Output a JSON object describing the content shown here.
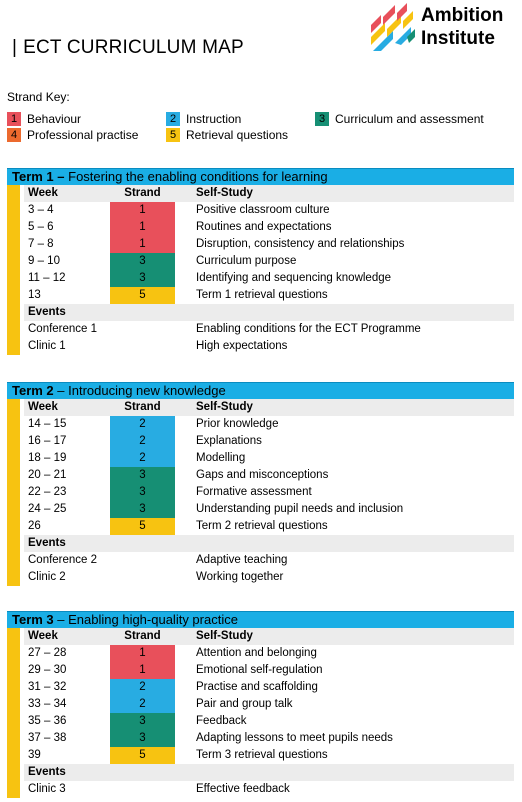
{
  "header": {
    "bar": "|",
    "title": "ECT CURRICULUM MAP",
    "logo_line1": "Ambition",
    "logo_line2": "Institute"
  },
  "colors": {
    "strand1": "#e8505b",
    "strand2": "#28ace2",
    "strand3": "#168f74",
    "strand4": "#ec6a2e",
    "strand5": "#f7c311",
    "term_header": "#1aaee5",
    "sidebar": "#f7c311",
    "row_shade": "#ececec"
  },
  "strand_key": {
    "title": "Strand Key:",
    "items": [
      {
        "num": "1",
        "label": "Behaviour"
      },
      {
        "num": "2",
        "label": "Instruction"
      },
      {
        "num": "3",
        "label": "Curriculum and assessment"
      },
      {
        "num": "4",
        "label": "Professional practise"
      },
      {
        "num": "5",
        "label": "Retrieval questions"
      }
    ]
  },
  "columns": {
    "week": "Week",
    "strand": "Strand",
    "self_study": "Self-Study"
  },
  "events_label": "Events",
  "terms": [
    {
      "name": "Term 1 –",
      "subtitle": " Fostering the enabling conditions for learning",
      "rows": [
        {
          "week": "3 – 4",
          "strand": "1",
          "self": "Positive classroom culture"
        },
        {
          "week": "5 – 6",
          "strand": "1",
          "self": "Routines and expectations"
        },
        {
          "week": "7 – 8",
          "strand": "1",
          "self": "Disruption, consistency and relationships"
        },
        {
          "week": "9 – 10",
          "strand": "3",
          "self": "Curriculum purpose"
        },
        {
          "week": "11 – 12",
          "strand": "3",
          "self": "Identifying and sequencing knowledge"
        },
        {
          "week": "13",
          "strand": "5",
          "self": "Term 1 retrieval questions"
        }
      ],
      "events": [
        {
          "name": "Conference 1",
          "desc": "Enabling conditions for the ECT Programme"
        },
        {
          "name": "Clinic 1",
          "desc": "High expectations"
        }
      ]
    },
    {
      "name": "Term 2",
      "subtitle": " – Introducing new knowledge",
      "rows": [
        {
          "week": "14 – 15",
          "strand": "2",
          "self": "Prior knowledge"
        },
        {
          "week": "16 – 17",
          "strand": "2",
          "self": "Explanations"
        },
        {
          "week": "18 – 19",
          "strand": "2",
          "self": "Modelling"
        },
        {
          "week": "20 – 21",
          "strand": "3",
          "self": "Gaps and misconceptions"
        },
        {
          "week": "22 – 23",
          "strand": "3",
          "self": "Formative assessment"
        },
        {
          "week": "24 – 25",
          "strand": "3",
          "self": "Understanding pupil needs and inclusion"
        },
        {
          "week": "26",
          "strand": "5",
          "self": "Term 2 retrieval questions"
        }
      ],
      "events": [
        {
          "name": "Conference 2",
          "desc": "Adaptive teaching"
        },
        {
          "name": "Clinic 2",
          "desc": "Working together"
        }
      ]
    },
    {
      "name": "Term 3",
      "subtitle": " – Enabling high-quality practice",
      "rows": [
        {
          "week": "27 – 28",
          "strand": "1",
          "self": "Attention and belonging"
        },
        {
          "week": "29 – 30",
          "strand": "1",
          "self": "Emotional self-regulation"
        },
        {
          "week": "31 – 32",
          "strand": "2",
          "self": "Practise and scaffolding"
        },
        {
          "week": "33 – 34",
          "strand": "2",
          "self": "Pair and group talk"
        },
        {
          "week": "35 – 36",
          "strand": "3",
          "self": "Feedback"
        },
        {
          "week": "37 – 38",
          "strand": "3",
          "self": "Adapting lessons to meet pupils needs"
        },
        {
          "week": "39",
          "strand": "5",
          "self": "Term 3 retrieval questions"
        }
      ],
      "events": [
        {
          "name": "Clinic 3",
          "desc": "Effective feedback"
        }
      ]
    }
  ]
}
